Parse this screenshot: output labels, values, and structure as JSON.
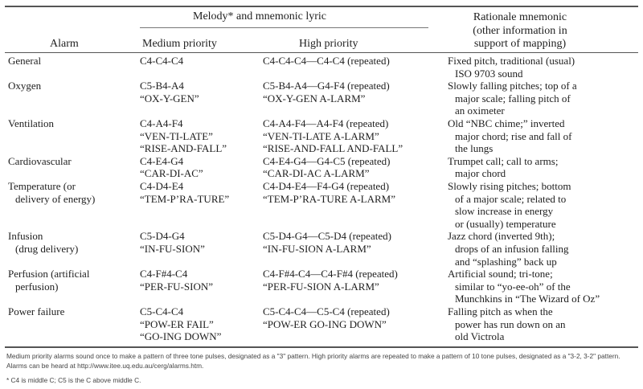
{
  "header": {
    "group": "Melody* and mnemonic lyric",
    "alarm": "Alarm",
    "medium": "Medium priority",
    "high": "High priority",
    "rationale": [
      "Rationale mnemonic",
      "(other information in",
      "support of mapping)"
    ]
  },
  "rows": [
    {
      "alarm": [
        "General"
      ],
      "medium": [
        "C4-C4-C4"
      ],
      "high": [
        "C4-C4-C4—C4-C4 (repeated)"
      ],
      "rationale": [
        "Fixed pitch, traditional (usual)",
        "ISO 9703 sound"
      ]
    },
    {
      "alarm": [
        "Oxygen"
      ],
      "medium": [
        "C5-B4-A4",
        "“OX-Y-GEN”"
      ],
      "high": [
        "C5-B4-A4—G4-F4 (repeated)",
        "“OX-Y-GEN A-LARM”"
      ],
      "rationale": [
        "Slowly falling pitches; top of a",
        "major scale; falling pitch of",
        "an oximeter"
      ]
    },
    {
      "alarm": [
        "Ventilation"
      ],
      "medium": [
        "C4-A4-F4",
        "“VEN-TI-LATE”",
        "“RISE-AND-FALL”"
      ],
      "high": [
        "C4-A4-F4—A4-F4 (repeated)",
        "“VEN-TI-LATE A-LARM”",
        "“RISE-AND-FALL AND-FALL”"
      ],
      "rationale": [
        "Old “NBC chime;” inverted",
        "major chord; rise and fall of",
        "the lungs"
      ]
    },
    {
      "alarm": [
        "Cardiovascular"
      ],
      "medium": [
        "C4-E4-G4",
        "“CAR-DI-AC”"
      ],
      "high": [
        "C4-E4-G4—G4-C5 (repeated)",
        "“CAR-DI-AC A-LARM”"
      ],
      "rationale": [
        "Trumpet call; call to arms;",
        "major chord"
      ]
    },
    {
      "alarm": [
        "Temperature (or",
        "delivery of energy)"
      ],
      "medium": [
        "C4-D4-E4",
        "“TEM-P’RA-TURE”"
      ],
      "high": [
        "C4-D4-E4—F4-G4 (repeated)",
        "“TEM-P’RA-TURE A-LARM”"
      ],
      "rationale": [
        "Slowly rising pitches; bottom",
        "of a major scale; related to",
        "slow increase in energy",
        "or (usually) temperature"
      ]
    },
    {
      "alarm": [
        "Infusion",
        "(drug delivery)"
      ],
      "medium": [
        "C5-D4-G4",
        "“IN-FU-SION”"
      ],
      "high": [
        "C5-D4-G4—C5-D4 (repeated)",
        "“IN-FU-SION A-LARM”"
      ],
      "rationale": [
        "Jazz chord (inverted 9th);",
        "drops of an infusion falling",
        "and “splashing” back up"
      ]
    },
    {
      "alarm": [
        "Perfusion (artificial",
        "perfusion)"
      ],
      "medium": [
        "C4-F#4-C4",
        "“PER-FU-SION”"
      ],
      "high": [
        "C4-F#4-C4—C4-F#4 (repeated)",
        "“PER-FU-SION A-LARM”"
      ],
      "rationale": [
        "Artificial sound; tri-tone;",
        "similar to “yo-ee-oh” of the",
        "Munchkins in “The Wizard of Oz”"
      ]
    },
    {
      "alarm": [
        "Power failure"
      ],
      "medium": [
        "C5-C4-C4",
        "“POW-ER FAIL”",
        "“GO-ING DOWN”"
      ],
      "high": [
        "C5-C4-C4—C5-C4 (repeated)",
        "“POW-ER GO-ING DOWN”"
      ],
      "rationale": [
        "Falling pitch as when the",
        "power has run down on an",
        "old Victrola"
      ]
    }
  ],
  "footnotes": {
    "note": "Medium priority alarms sound once to make a pattern of three tone pulses, designated as a \"3\" pattern. High priority alarms are repeated to make a pattern of 10 tone pulses, designated as a \"3-2, 3-2\" pattern. Alarms can be heard at http://www.itee.uq.edu.au/cerg/alarms.htm.",
    "star": "* C4 is middle C; C5 is the C above middle C."
  }
}
